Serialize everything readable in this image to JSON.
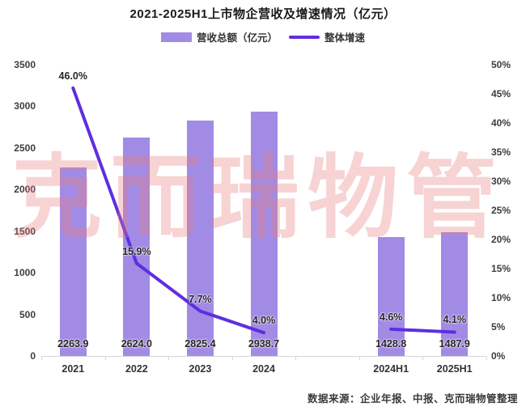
{
  "title": "2021-2025H1上市物企营收及增速情况（亿元）",
  "legend": {
    "bar_label": "营收总额（亿元）",
    "line_label": "整体增速"
  },
  "watermark": "克而瑞物管",
  "footer": "数据来源：企业年报、中报、克而瑞物管整理",
  "colors": {
    "bar": "#A28BE4",
    "line": "#5F2EE0",
    "axis": "#d6d6d6",
    "label": "#262626"
  },
  "chart_data": {
    "type": "bar",
    "title": "2021-2025H1上市物企营收及增速情况（亿元）",
    "categories": [
      "2021",
      "2022",
      "2023",
      "2024",
      "2024H1",
      "2025H1"
    ],
    "category_slots": [
      0,
      1,
      2,
      3,
      5,
      6
    ],
    "num_slots": 7,
    "series": [
      {
        "name": "营收总额（亿元）",
        "type": "bar",
        "axis": "left",
        "values": [
          2263.9,
          2624.0,
          2825.4,
          2938.7,
          1428.8,
          1487.9
        ],
        "labels": [
          "2263.9",
          "2624.0",
          "2825.4",
          "2938.7",
          "1428.8",
          "1487.9"
        ]
      },
      {
        "name": "整体增速",
        "type": "line",
        "axis": "right",
        "values": [
          46.0,
          15.9,
          7.7,
          4.0,
          4.6,
          4.1
        ],
        "labels": [
          "46.0%",
          "15.9%",
          "7.7%",
          "4.0%",
          "4.6%",
          "4.1%"
        ],
        "segments": [
          [
            0,
            1,
            2,
            3
          ],
          [
            4,
            5
          ]
        ]
      }
    ],
    "left_axis": {
      "min": 0,
      "max": 3500,
      "step": 500
    },
    "right_axis": {
      "min": 0,
      "max": 50,
      "step": 5,
      "suffix": "%"
    },
    "grid": false,
    "legend_position": "top"
  }
}
